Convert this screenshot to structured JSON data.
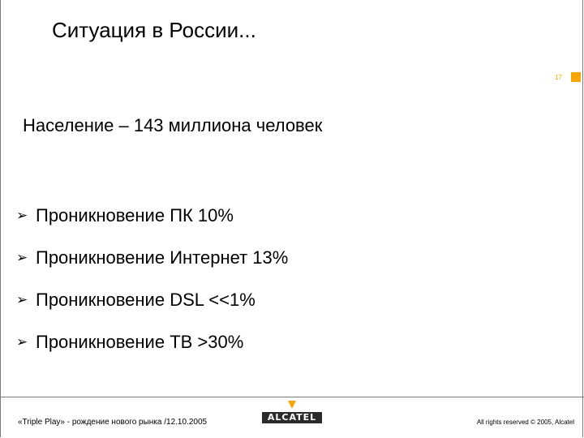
{
  "slide": {
    "title": "Ситуация в России...",
    "page_number": "17",
    "population": "Население – 143 миллиона человек",
    "bullets": [
      {
        "icon": "arrow-bullet-icon",
        "text": "Проникновение ПК 10%"
      },
      {
        "icon": "arrow-bullet-icon",
        "text": "Проникновение Интернет 13%"
      },
      {
        "icon": "arrow-bullet-icon",
        "text": "Проникновение DSL <<1%"
      },
      {
        "icon": "arrow-bullet-icon",
        "text": "Проникновение ТВ >30%"
      }
    ]
  },
  "footer": {
    "left_text": "«Triple Play» - рождение нового рынка /12.10.2005",
    "logo_text": "ALCATEL",
    "right_text": "All rights reserved © 2005, Alcatel"
  },
  "colors": {
    "accent": "#f7a600",
    "logo_background": "#2a2a2a",
    "rule": "#7a7a7a"
  }
}
